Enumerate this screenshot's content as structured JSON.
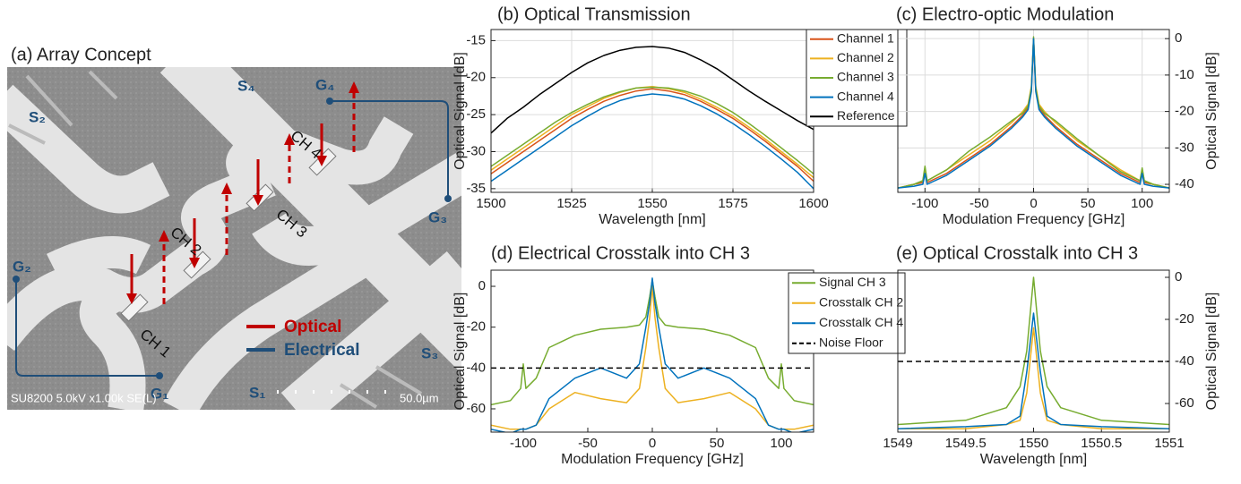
{
  "array_concept": {
    "title": "(a) Array Concept",
    "labels": {
      "S2": "S₂",
      "S4": "S₄",
      "G4": "G₄",
      "G2": "G₂",
      "G3": "G₃",
      "S3": "S₃",
      "S1": "S₁",
      "G1": "G₁",
      "CH1": "CH 1",
      "CH2": "CH 2",
      "CH3": "CH 3",
      "CH4": "CH 4"
    },
    "legend": {
      "optical": "Optical",
      "electrical": "Electrical"
    },
    "microscope_info": "SU8200 5.0kV x1.00k SE(L)",
    "scale_bar": "50.0µm"
  },
  "chart_data": [
    {
      "type": "line",
      "title": "(b) Optical Transmission",
      "xlabel": "Wavelength [nm]",
      "ylabel": "Optical Signal [dB]",
      "y_axis": "left",
      "grid": true,
      "legend": "upper right",
      "xlim": [
        1500,
        1600
      ],
      "xticks": [
        1500,
        1525,
        1550,
        1575,
        1600
      ],
      "ylim": [
        -35.5,
        -13.5
      ],
      "yticks": [
        -35,
        -30,
        -25,
        -20,
        -15
      ],
      "x": [
        1500,
        1505,
        1510,
        1515,
        1520,
        1525,
        1530,
        1535,
        1540,
        1545,
        1550,
        1555,
        1560,
        1565,
        1570,
        1575,
        1580,
        1585,
        1590,
        1595,
        1600
      ],
      "series": [
        {
          "name": "Channel 1",
          "color": "#d95319",
          "values": [
            -33,
            -31.5,
            -30,
            -28.5,
            -27,
            -25.5,
            -24.3,
            -23.2,
            -22.4,
            -21.8,
            -21.5,
            -21.8,
            -22.3,
            -23.2,
            -24.3,
            -25.5,
            -27,
            -28.6,
            -30.3,
            -32,
            -34
          ]
        },
        {
          "name": "Channel 2",
          "color": "#edb120",
          "values": [
            -32.5,
            -31,
            -29.5,
            -28,
            -26.5,
            -25,
            -23.9,
            -22.8,
            -22,
            -21.4,
            -21.2,
            -21.5,
            -22,
            -22.9,
            -24,
            -25.2,
            -26.7,
            -28.3,
            -30,
            -31.7,
            -33.5
          ]
        },
        {
          "name": "Channel 3",
          "color": "#77ac30",
          "values": [
            -32,
            -30.5,
            -29,
            -27.5,
            -26,
            -24.7,
            -23.6,
            -22.6,
            -21.9,
            -21.4,
            -21.3,
            -21.4,
            -21.8,
            -22.5,
            -23.5,
            -24.7,
            -26.2,
            -27.8,
            -29.5,
            -31.2,
            -33
          ]
        },
        {
          "name": "Channel 4",
          "color": "#0072bd",
          "values": [
            -34,
            -32.5,
            -31,
            -29.5,
            -28,
            -26.5,
            -25.2,
            -24,
            -23.1,
            -22.5,
            -22.2,
            -22.4,
            -22.9,
            -23.8,
            -24.9,
            -26.2,
            -27.7,
            -29.3,
            -31,
            -32.8,
            -35
          ]
        },
        {
          "name": "Reference",
          "color": "#000000",
          "values": [
            -27.5,
            -25.5,
            -24,
            -22.3,
            -20.8,
            -19.3,
            -18,
            -17,
            -16.3,
            -15.9,
            -15.8,
            -16,
            -16.6,
            -17.6,
            -18.8,
            -20.3,
            -21.8,
            -23.2,
            -24.5,
            -25.8,
            -27
          ]
        }
      ]
    },
    {
      "type": "line",
      "title": "(c) Electro-optic Modulation",
      "xlabel": "Modulation Frequency [GHz]",
      "ylabel": "Optical Signal [dB]",
      "y_axis": "right",
      "grid": true,
      "xlim": [
        -125,
        125
      ],
      "xticks": [
        -100,
        -50,
        0,
        50,
        100
      ],
      "ylim": [
        -42.2,
        2.5
      ],
      "yticks": [
        -40,
        -30,
        -20,
        -10,
        0
      ],
      "x": [
        -125,
        -110,
        -102,
        -100,
        -98,
        -80,
        -60,
        -40,
        -20,
        -10,
        -5,
        -2,
        0,
        2,
        5,
        10,
        20,
        40,
        60,
        80,
        98,
        100,
        102,
        110,
        125
      ],
      "series": [
        {
          "name": "Channel 1",
          "color": "#d95319",
          "values": [
            -41,
            -40,
            -39.5,
            -36,
            -39.5,
            -37,
            -33,
            -29,
            -24,
            -21,
            -19,
            -14,
            0,
            -14,
            -19,
            -21,
            -24,
            -29,
            -33,
            -37,
            -39.5,
            -36,
            -39.5,
            -40,
            -41
          ]
        },
        {
          "name": "Channel 2",
          "color": "#edb120",
          "values": [
            -41,
            -40,
            -39,
            -36,
            -39,
            -36,
            -32,
            -28,
            -23,
            -20,
            -18,
            -13,
            0,
            -13,
            -18,
            -20,
            -23,
            -28,
            -32,
            -36,
            -39,
            -36,
            -39,
            -40,
            -41
          ]
        },
        {
          "name": "Channel 3",
          "color": "#77ac30",
          "values": [
            -41,
            -40,
            -39,
            -35,
            -39,
            -36,
            -31,
            -27,
            -22.5,
            -20.5,
            -18.5,
            -13.5,
            0.5,
            -13.5,
            -18.5,
            -20.5,
            -22.5,
            -27.5,
            -32,
            -36.5,
            -39,
            -35.5,
            -39,
            -40,
            -41
          ]
        },
        {
          "name": "Channel 4",
          "color": "#0072bd",
          "values": [
            -41,
            -40.5,
            -40,
            -37,
            -40,
            -37.5,
            -33.5,
            -29.5,
            -24.5,
            -21.5,
            -19.5,
            -14.5,
            0,
            -14.5,
            -19.5,
            -21.5,
            -24.5,
            -29.5,
            -33.5,
            -37.5,
            -40,
            -37,
            -40,
            -40.5,
            -41
          ]
        }
      ]
    },
    {
      "type": "line",
      "title": "(d) Electrical Crosstalk into CH 3",
      "xlabel": "Modulation Frequency [GHz]",
      "ylabel": "Optical Signal [dB]",
      "y_axis": "left",
      "grid": false,
      "legend": "upper right",
      "xlim": [
        -125,
        125
      ],
      "xticks": [
        -100,
        -50,
        0,
        50,
        100
      ],
      "ylim": [
        -71.4,
        7.9
      ],
      "yticks": [
        -60,
        -40,
        -20,
        0
      ],
      "x": [
        -125,
        -110,
        -102,
        -100,
        -98,
        -90,
        -80,
        -60,
        -40,
        -20,
        -10,
        -5,
        -2,
        0,
        2,
        5,
        10,
        20,
        40,
        60,
        80,
        90,
        98,
        100,
        102,
        110,
        125
      ],
      "series": [
        {
          "name": "Signal CH 3",
          "color": "#77ac30",
          "values": [
            -58,
            -56,
            -50,
            -38,
            -50,
            -45,
            -30,
            -24,
            -21,
            -20,
            -19,
            -15,
            -5,
            3,
            -5,
            -15,
            -19,
            -20,
            -21,
            -24,
            -30,
            -45,
            -50,
            -38,
            -50,
            -56,
            -58
          ]
        },
        {
          "name": "Crosstalk CH 2",
          "color": "#edb120",
          "values": [
            -68,
            -70,
            -70,
            -70,
            -70,
            -68,
            -60,
            -52,
            -55,
            -57,
            -50,
            -30,
            -15,
            0,
            -15,
            -30,
            -50,
            -57,
            -55,
            -52,
            -60,
            -68,
            -70,
            -70,
            -70,
            -70,
            -68
          ]
        },
        {
          "name": "Crosstalk CH 4",
          "color": "#0072bd",
          "values": [
            -70,
            -72,
            -70,
            -70,
            -70,
            -68,
            -55,
            -45,
            -40,
            -45,
            -38,
            -20,
            -8,
            4,
            -8,
            -20,
            -38,
            -45,
            -40,
            -45,
            -55,
            -68,
            -70,
            -70,
            -70,
            -72,
            -70
          ]
        }
      ],
      "noise_floor": {
        "name": "Noise Floor",
        "value": -40,
        "color": "#000000"
      }
    },
    {
      "type": "line",
      "title": "(e) Optical Crosstalk into CH 3",
      "xlabel": "Wavelength [nm]",
      "ylabel": "Optical Signal [dB]",
      "y_axis": "right",
      "grid": false,
      "xlim": [
        1549,
        1551
      ],
      "xticks": [
        1549,
        1549.5,
        1550,
        1550.5,
        1551
      ],
      "ylim": [
        -73.6,
        3.4
      ],
      "yticks": [
        -60,
        -40,
        -20,
        0
      ],
      "x": [
        1549,
        1549.5,
        1549.8,
        1549.9,
        1549.95,
        1550,
        1550.05,
        1550.1,
        1550.2,
        1550.5,
        1551
      ],
      "series": [
        {
          "name": "Signal CH 3",
          "color": "#77ac30",
          "values": [
            -70,
            -68,
            -62,
            -52,
            -35,
            0,
            -35,
            -52,
            -62,
            -68,
            -70
          ]
        },
        {
          "name": "Crosstalk CH 2",
          "color": "#edb120",
          "values": [
            -72,
            -72,
            -70,
            -68,
            -55,
            -24,
            -55,
            -68,
            -70,
            -72,
            -72
          ]
        },
        {
          "name": "Crosstalk CH 4",
          "color": "#0072bd",
          "values": [
            -72,
            -71,
            -70,
            -66,
            -45,
            -17,
            -45,
            -66,
            -70,
            -71,
            -72
          ]
        }
      ],
      "noise_floor": {
        "name": "Noise Floor",
        "value": -40,
        "color": "#000000"
      }
    }
  ]
}
